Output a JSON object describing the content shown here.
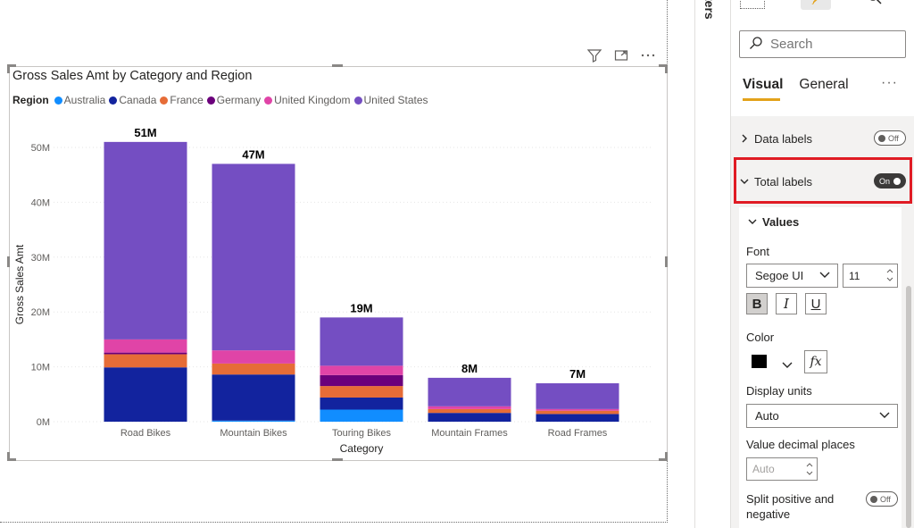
{
  "chart": {
    "title": "Gross Sales Amt by Category and Region",
    "legend_title": "Region",
    "colors": {
      "Australia": "#118dff",
      "Canada": "#12239e",
      "France": "#e66c37",
      "Germany": "#6b007b",
      "United Kingdom": "#e044a7",
      "United States": "#744ec2"
    }
  },
  "chart_data": {
    "type": "bar",
    "stacked": true,
    "title": "Gross Sales Amt by Category and Region",
    "xlabel": "Category",
    "ylabel": "Gross Sales Amt",
    "ylim": [
      0,
      50000000
    ],
    "yticks": [
      "0M",
      "10M",
      "20M",
      "30M",
      "40M",
      "50M"
    ],
    "categories": [
      "Road Bikes",
      "Mountain Bikes",
      "Touring Bikes",
      "Mountain Frames",
      "Road Frames"
    ],
    "total_labels": [
      "51M",
      "47M",
      "19M",
      "8M",
      "7M"
    ],
    "series": [
      {
        "name": "Australia",
        "values": [
          0,
          200000,
          2200000,
          0,
          0
        ]
      },
      {
        "name": "Canada",
        "values": [
          9900000,
          8400000,
          2200000,
          1600000,
          1400000
        ]
      },
      {
        "name": "France",
        "values": [
          2400000,
          2000000,
          2100000,
          700000,
          600000
        ]
      },
      {
        "name": "Germany",
        "values": [
          300000,
          0,
          2000000,
          0,
          0
        ]
      },
      {
        "name": "United Kingdom",
        "values": [
          2400000,
          2400000,
          1700000,
          500000,
          300000
        ]
      },
      {
        "name": "United States",
        "values": [
          36000000,
          34000000,
          8800000,
          5200000,
          4700000
        ]
      }
    ],
    "grid": true,
    "legend_position": "top-left"
  },
  "side": {
    "filters_label": "ters"
  },
  "pane": {
    "search_placeholder": "Search",
    "tabs": [
      "Visual",
      "General"
    ],
    "more": "···",
    "data_labels": {
      "label": "Data labels",
      "toggle": "Off"
    },
    "total_labels": {
      "label": "Total labels",
      "toggle": "On"
    },
    "values_header": "Values",
    "font_label": "Font",
    "font_family": "Segoe UI",
    "font_size": "11",
    "bold": "B",
    "italic": "I",
    "underline": "U",
    "color_label": "Color",
    "color_value": "#000000",
    "fx": "fx",
    "display_units_label": "Display units",
    "display_units_value": "Auto",
    "decimal_label": "Value decimal places",
    "decimal_placeholder": "Auto",
    "split_label_1": "Split positive and",
    "split_label_2": "negative",
    "split_toggle": "Off"
  }
}
